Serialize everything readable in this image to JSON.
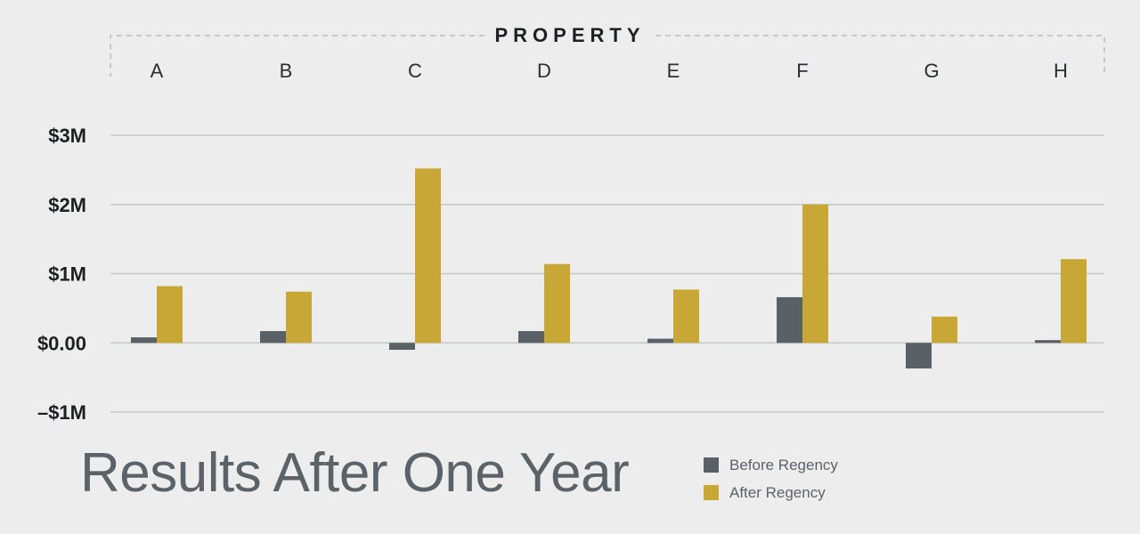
{
  "chart_data": {
    "type": "bar",
    "title": "Results After One Year",
    "top_axis_title": "PROPERTY",
    "categories": [
      "A",
      "B",
      "C",
      "D",
      "E",
      "F",
      "G",
      "H"
    ],
    "series": [
      {
        "name": "Before Regency",
        "color": "#5a6166",
        "values": [
          0.08,
          0.17,
          -0.1,
          0.17,
          0.06,
          0.66,
          -0.37,
          0.04
        ]
      },
      {
        "name": "After Regency",
        "color": "#c8a737",
        "values": [
          0.82,
          0.74,
          2.52,
          1.14,
          0.77,
          2.0,
          0.38,
          1.21
        ]
      }
    ],
    "yticks": [
      {
        "value": 3,
        "label": "$3M"
      },
      {
        "value": 2,
        "label": "$2M"
      },
      {
        "value": 1,
        "label": "$1M"
      },
      {
        "value": 0,
        "label": "$0.00"
      },
      {
        "value": -1,
        "label": "–$1M"
      }
    ],
    "ylim": [
      -1,
      3
    ],
    "yunit": "millions of dollars",
    "grid": true,
    "legend_position": "bottom-right"
  }
}
